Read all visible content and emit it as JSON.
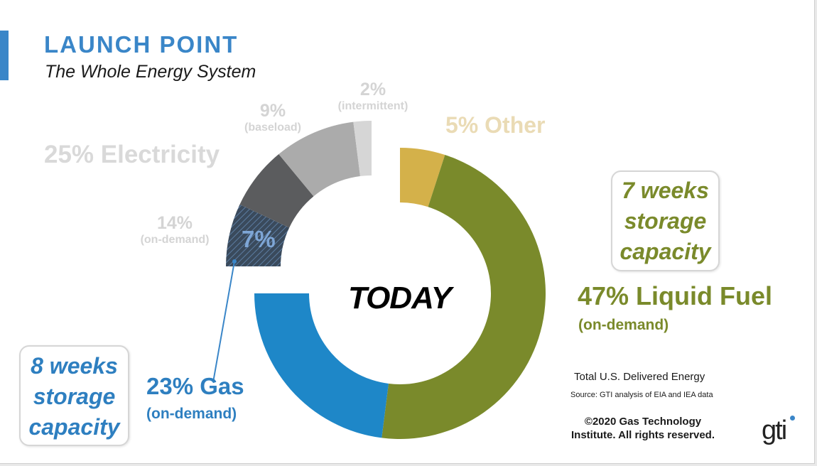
{
  "slide": {
    "title": "LAUNCH POINT",
    "subtitle": "The Whole Energy System",
    "center_label": "TODAY",
    "source_title": "Total U.S. Delivered Energy",
    "source_note": "Source: GTI analysis of EIA and IEA data",
    "copyright_line1": "©2020 Gas Technology",
    "copyright_line2": "Institute. All rights reserved.",
    "logo_text": "gti"
  },
  "labels": {
    "electricity": "25% Electricity",
    "on_demand_pct": "14%",
    "on_demand_note": "(on-demand)",
    "baseload_pct": "9%",
    "baseload_note": "(baseload)",
    "intermittent_pct": "2%",
    "intermittent_note": "(intermittent)",
    "gas_share_in_electricity": "7%",
    "other": "5% Other",
    "liquid": "47% Liquid Fuel",
    "liquid_sub": "(on-demand)",
    "gas": "23% Gas",
    "gas_sub": "(on-demand)"
  },
  "callouts": {
    "liquid": [
      "7 weeks",
      "storage",
      "capacity"
    ],
    "gas": [
      "8 weeks",
      "storage",
      "capacity"
    ]
  },
  "chart_data": {
    "type": "pie",
    "title": "LAUNCH POINT",
    "slices": [
      {
        "name": "Other",
        "value": 5,
        "color": "#d4b14a"
      },
      {
        "name": "Liquid Fuel",
        "value": 47,
        "color": "#7a8a2b"
      },
      {
        "name": "Gas",
        "value": 23,
        "color": "#1e87c8"
      },
      {
        "name": "Electricity - on-demand (gas share)",
        "value": 7,
        "color": "#3a4a5c",
        "highlight": "hatch"
      },
      {
        "name": "Electricity - on-demand",
        "value": 7,
        "color": "#5b5c5e"
      },
      {
        "name": "Electricity - baseload",
        "value": 9,
        "color": "#ababab"
      },
      {
        "name": "Electricity - intermittent",
        "value": 2,
        "color": "#d6d6d6"
      }
    ],
    "exploded": [
      "Electricity"
    ],
    "colors": {
      "electricity_text": "#d9d9d9",
      "liquid_text": "#7a8a2b",
      "gas_text": "#2e7fc0",
      "other_text": "#eadbb5",
      "accent": "#3a86c8"
    }
  }
}
